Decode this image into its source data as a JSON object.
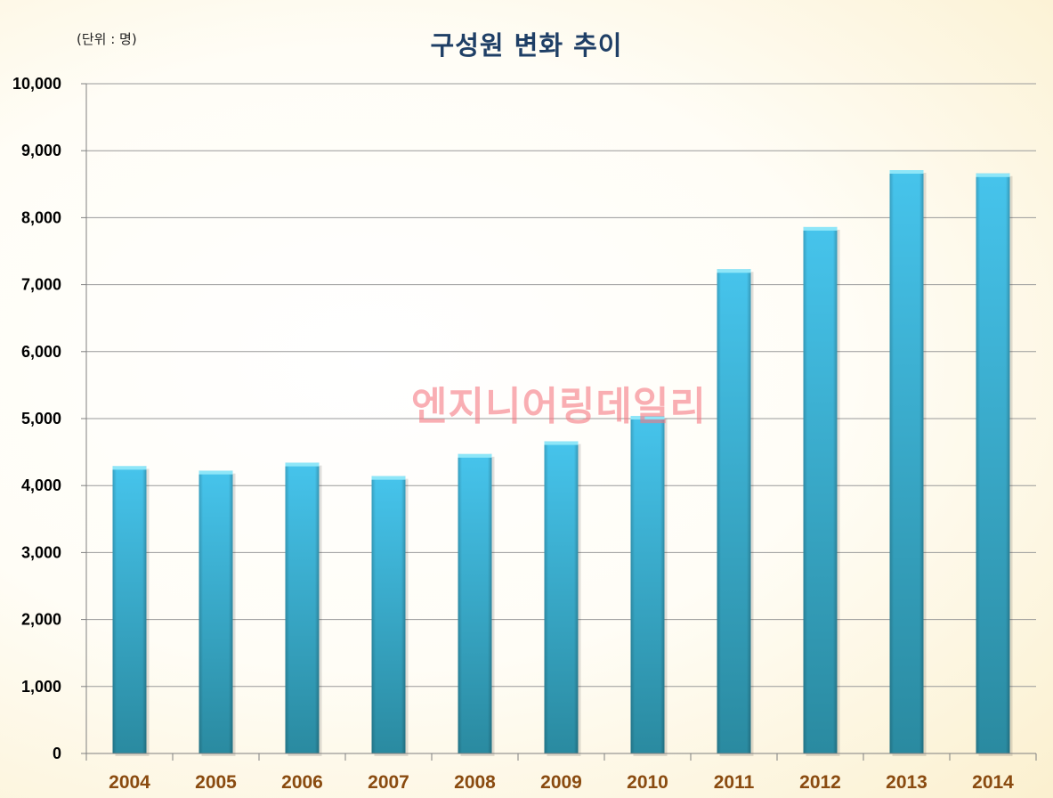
{
  "unit_label": "(단위 : 명)",
  "watermark": "엔지니어링데일리",
  "colors": {
    "bar_top": "#46c4ec",
    "bar_bottom": "#2a8aa0",
    "bar_cap": "#8ee6f8",
    "gridline": "#9a9a9a",
    "axis": "#808080",
    "title": "#1f3f66",
    "x_tick": "#8a4b10"
  },
  "chart_data": {
    "type": "bar",
    "title": "구성원 변화 추이",
    "xlabel": "",
    "ylabel": "",
    "categories": [
      "2004",
      "2005",
      "2006",
      "2007",
      "2008",
      "2009",
      "2010",
      "2011",
      "2012",
      "2013",
      "2014"
    ],
    "values": [
      4290,
      4220,
      4340,
      4140,
      4470,
      4660,
      5040,
      7230,
      7860,
      8710,
      8660
    ],
    "ylim": [
      0,
      10000
    ],
    "ytick_step": 1000,
    "grid": true,
    "legend": "none"
  }
}
